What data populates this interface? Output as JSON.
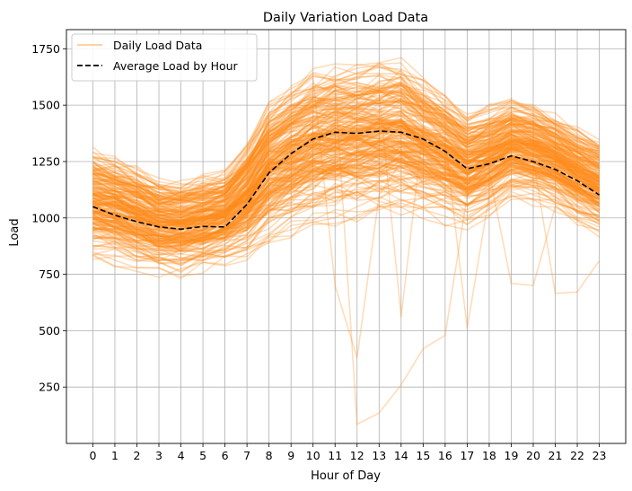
{
  "chart_data": {
    "type": "line",
    "title": "Daily Variation Load Data",
    "xlabel": "Hour of Day",
    "ylabel": "Load",
    "x": [
      0,
      1,
      2,
      3,
      4,
      5,
      6,
      7,
      8,
      9,
      10,
      11,
      12,
      13,
      14,
      15,
      16,
      17,
      18,
      19,
      20,
      21,
      22,
      23
    ],
    "xlim": [
      -1.2,
      24.2
    ],
    "ylim": [
      0,
      1835
    ],
    "yticks": [
      250,
      500,
      750,
      1000,
      1250,
      1500,
      1750
    ],
    "grid": true,
    "legend_position": "top-left",
    "series": [
      {
        "name": "Daily Load Data",
        "color": "#ff8c1a",
        "style": "solid",
        "alpha": 0.3,
        "band_lower": [
          790,
          780,
          760,
          730,
          730,
          750,
          780,
          800,
          860,
          900,
          940,
          960,
          980,
          980,
          980,
          970,
          960,
          940,
          990,
          1060,
          1050,
          1020,
          960,
          910
        ],
        "band_upper": [
          1330,
          1300,
          1250,
          1200,
          1190,
          1210,
          1230,
          1360,
          1540,
          1620,
          1680,
          1700,
          1700,
          1720,
          1730,
          1650,
          1580,
          1490,
          1520,
          1560,
          1530,
          1480,
          1420,
          1370
        ],
        "anomalies": [
          [
            1230,
            1180,
            1140,
            1100,
            1080,
            1100,
            1120,
            1280,
            1450,
            1550,
            1620,
            700,
            380,
            1100,
            1250,
            1200,
            1150,
            1050,
            1150,
            1200,
            1180,
            1150,
            1100,
            1050
          ],
          [
            1150,
            1120,
            1080,
            1050,
            1030,
            1040,
            1060,
            1200,
            1380,
            1480,
            1550,
            1600,
            85,
            135,
            260,
            420,
            480,
            1100,
            1200,
            1250,
            1220,
            1180,
            1120,
            1080
          ],
          [
            1100,
            1080,
            1040,
            1000,
            980,
            990,
            1010,
            1150,
            1320,
            1420,
            1500,
            1550,
            1540,
            1560,
            560,
            1400,
            1350,
            510,
            1100,
            1150,
            1120,
            1080,
            1030,
            990
          ],
          [
            950,
            920,
            890,
            860,
            850,
            860,
            880,
            980,
            1100,
            1200,
            1280,
            1320,
            1330,
            1340,
            1340,
            1300,
            1250,
            1150,
            1200,
            710,
            700,
            1050,
            1000,
            960
          ],
          [
            1000,
            980,
            950,
            920,
            910,
            920,
            940,
            1050,
            1200,
            1300,
            1380,
            1400,
            1410,
            1420,
            1410,
            1360,
            1300,
            1200,
            1260,
            1290,
            1260,
            665,
            672,
            810
          ]
        ]
      },
      {
        "name": "Average Load by Hour",
        "color": "#000000",
        "style": "dashed",
        "values": [
          1050,
          1012,
          983,
          960,
          950,
          962,
          960,
          1060,
          1200,
          1285,
          1350,
          1380,
          1375,
          1385,
          1380,
          1350,
          1295,
          1218,
          1240,
          1275,
          1250,
          1215,
          1165,
          1102
        ]
      }
    ]
  }
}
